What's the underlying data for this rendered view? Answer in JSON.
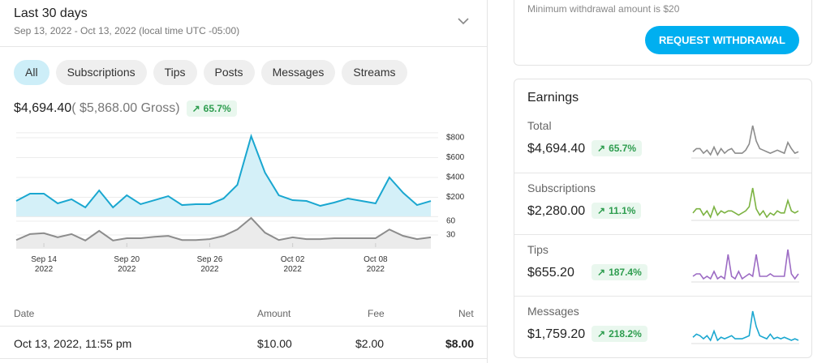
{
  "header": {
    "title": "Last 30 days",
    "range": "Sep 13, 2022 - Oct 13, 2022 (local time UTC -05:00)"
  },
  "tabs": [
    "All",
    "Subscriptions",
    "Tips",
    "Posts",
    "Messages",
    "Streams"
  ],
  "summary": {
    "net": "$4,694.40",
    "gross": "( $5,868.00 Gross)",
    "change": "65.7%"
  },
  "table": {
    "headers": [
      "Date",
      "Amount",
      "Fee",
      "Net"
    ],
    "rows": [
      [
        "Oct 13, 2022, 11:55 pm",
        "$10.00",
        "$2.00",
        "$8.00"
      ]
    ]
  },
  "withdrawal": {
    "note": "Minimum withdrawal amount is $20",
    "button": "REQUEST WITHDRAWAL"
  },
  "earnings": {
    "title": "Earnings",
    "rows": [
      {
        "label": "Total",
        "amount": "$4,694.40",
        "change": "65.7%"
      },
      {
        "label": "Subscriptions",
        "amount": "$2,280.00",
        "change": "11.1%"
      },
      {
        "label": "Tips",
        "amount": "$655.20",
        "change": "187.4%"
      },
      {
        "label": "Messages",
        "amount": "$1,759.20",
        "change": "218.2%"
      }
    ]
  },
  "chart_data": [
    {
      "type": "area",
      "color": "#1aa7d0",
      "fill": "#d4f0f8",
      "values": [
        163,
        237,
        237,
        139,
        180,
        98,
        269,
        98,
        220,
        131,
        171,
        212,
        122,
        131,
        131,
        188,
        326,
        816,
        449,
        220,
        171,
        163,
        114,
        147,
        188,
        163,
        139,
        400,
        245,
        122,
        163
      ],
      "ylim": [
        0,
        850
      ],
      "yticks": [
        {
          "value": 200,
          "label": "$200"
        },
        {
          "value": 400,
          "label": "$400"
        },
        {
          "value": 600,
          "label": "$600"
        },
        {
          "value": 800,
          "label": "$800"
        }
      ]
    },
    {
      "type": "area",
      "color": "#8c8c8c",
      "fill": "#ebebeb",
      "values": [
        19,
        32,
        34,
        25,
        32,
        18,
        39,
        18,
        23,
        23,
        26,
        28,
        19,
        19,
        21,
        28,
        42,
        67,
        35,
        19,
        25,
        21,
        21,
        23,
        23,
        23,
        23,
        42,
        28,
        21,
        25
      ],
      "ylim": [
        0,
        70
      ],
      "yticks": [
        30,
        60
      ],
      "xlim": [
        0,
        30
      ],
      "xticks": [
        {
          "value": 2,
          "label": "Sep 14\n2022"
        },
        {
          "value": 8,
          "label": "Sep 20\n2022"
        },
        {
          "value": 14,
          "label": "Sep 26\n2022"
        },
        {
          "value": 20,
          "label": "Oct 02\n2022"
        },
        {
          "value": 26,
          "label": "Oct 08\n2022"
        }
      ]
    },
    {
      "type": "line",
      "color": "#8c8c8c",
      "values": [
        3,
        5,
        5,
        2,
        4,
        1,
        6,
        1,
        5,
        2,
        4,
        5,
        2,
        2,
        2,
        4,
        8,
        20,
        10,
        5,
        4,
        3,
        2,
        3,
        4,
        3,
        2,
        9,
        5,
        2,
        3
      ]
    },
    {
      "type": "line",
      "color": "#7cb342",
      "values": [
        4,
        6,
        6,
        3,
        5,
        2,
        7,
        3,
        5,
        4,
        5,
        5,
        4,
        3,
        4,
        5,
        7,
        16,
        6,
        3,
        5,
        2,
        4,
        3,
        5,
        4,
        4,
        10,
        5,
        4,
        5
      ]
    },
    {
      "type": "line",
      "color": "#9c6bc4",
      "values": [
        3,
        4,
        4,
        2,
        3,
        2,
        5,
        2,
        3,
        2,
        12,
        3,
        2,
        5,
        2,
        3,
        4,
        3,
        12,
        3,
        3,
        3,
        4,
        3,
        3,
        3,
        3,
        14,
        4,
        2,
        4
      ]
    },
    {
      "type": "line",
      "color": "#1aa7d0",
      "values": [
        3,
        5,
        4,
        2,
        4,
        1,
        7,
        1,
        3,
        2,
        3,
        4,
        2,
        2,
        2,
        3,
        4,
        20,
        10,
        4,
        3,
        2,
        5,
        2,
        3,
        2,
        3,
        2,
        1,
        2,
        1
      ]
    }
  ]
}
